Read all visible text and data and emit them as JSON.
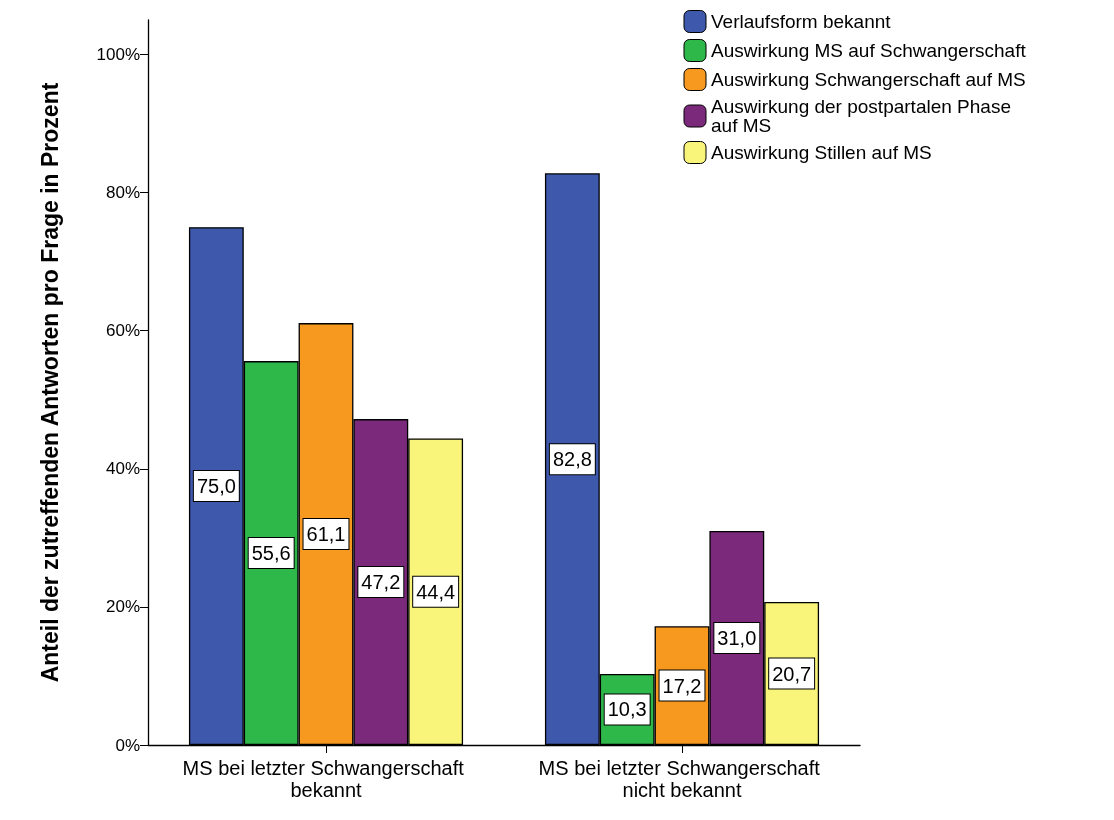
{
  "chart_data": {
    "type": "bar",
    "ylabel": "Anteil der zutreffenden Antworten pro Frage in Prozent",
    "categories": [
      "MS bei letzter Schwangerschaft bekannt",
      "MS bei letzter Schwangerschaft nicht bekannt"
    ],
    "series": [
      {
        "name": "Verlaufsform bekannt",
        "color": "#3e58ac",
        "values": [
          75.0,
          82.8
        ],
        "value_labels": [
          "75,0",
          "82,8"
        ]
      },
      {
        "name": "Auswirkung MS auf Schwangerschaft",
        "color": "#2eb84a",
        "values": [
          55.6,
          10.3
        ],
        "value_labels": [
          "55,6",
          "10,3"
        ]
      },
      {
        "name": "Auswirkung Schwangerschaft auf MS",
        "color": "#f7981f",
        "values": [
          61.1,
          17.2
        ],
        "value_labels": [
          "61,1",
          "17,2"
        ]
      },
      {
        "name": "Auswirkung der postpartalen Phase auf MS",
        "color": "#7b2a7b",
        "values": [
          47.2,
          31.0
        ],
        "value_labels": [
          "47,2",
          "31,0"
        ]
      },
      {
        "name": "Auswirkung Stillen auf MS",
        "color": "#f8f57a",
        "values": [
          44.4,
          20.7
        ],
        "value_labels": [
          "44,4",
          "20,7"
        ]
      }
    ],
    "ylim": [
      0,
      105
    ],
    "yticks": [
      {
        "value": 0,
        "label": "0%"
      },
      {
        "value": 20,
        "label": "20%"
      },
      {
        "value": 40,
        "label": "40%"
      },
      {
        "value": 60,
        "label": "60%"
      },
      {
        "value": 80,
        "label": "80%"
      },
      {
        "value": 100,
        "label": "100%"
      }
    ],
    "grid": false,
    "legend": "top right"
  }
}
